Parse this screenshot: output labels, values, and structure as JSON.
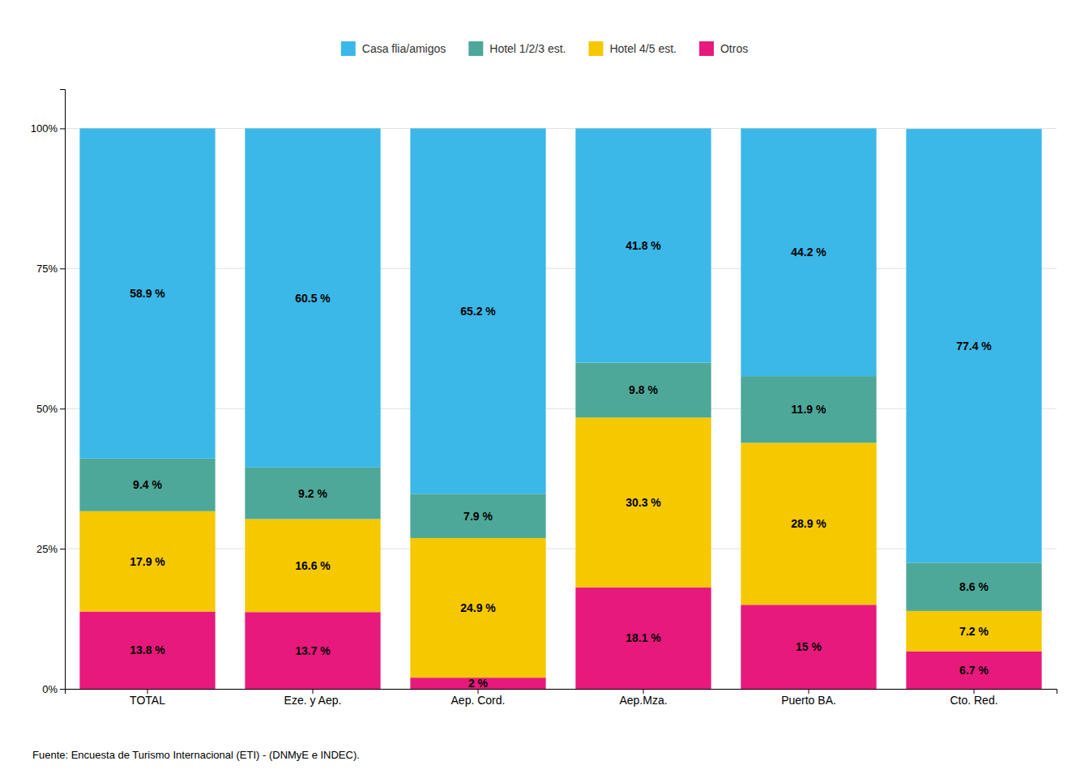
{
  "chart_data": {
    "type": "bar",
    "stacked": true,
    "categories": [
      "TOTAL",
      "Eze. y Aep.",
      "Aep. Cord.",
      "Aep.Mza.",
      "Puerto BA.",
      "Cto. Red."
    ],
    "series": [
      {
        "name": "Otros",
        "color": "#E8197C",
        "values": [
          13.8,
          13.7,
          2.0,
          18.1,
          15.0,
          6.7
        ],
        "value_labels": [
          "13.8 %",
          "13.7 %",
          "2 %",
          "18.1 %",
          "15 %",
          "6.7 %"
        ]
      },
      {
        "name": "Hotel 4/5 est.",
        "color": "#F5C800",
        "values": [
          17.9,
          16.6,
          24.9,
          30.3,
          28.9,
          7.2
        ],
        "value_labels": [
          "17.9 %",
          "16.6 %",
          "24.9 %",
          "30.3 %",
          "28.9 %",
          "7.2 %"
        ]
      },
      {
        "name": "Hotel 1/2/3 est.",
        "color": "#4DA899",
        "values": [
          9.4,
          9.2,
          7.9,
          9.8,
          11.9,
          8.6
        ],
        "value_labels": [
          "9.4 %",
          "9.2 %",
          "7.9 %",
          "9.8 %",
          "11.9 %",
          "8.6 %"
        ]
      },
      {
        "name": "Casa flia/amigos",
        "color": "#3BB8E8",
        "values": [
          58.9,
          60.5,
          65.2,
          41.8,
          44.2,
          77.4
        ],
        "value_labels": [
          "58.9 %",
          "60.5 %",
          "65.2 %",
          "41.8 %",
          "44.2 %",
          "77.4 %"
        ]
      }
    ],
    "data_labels": true,
    "ylim": [
      0,
      107
    ],
    "yticks": [
      {
        "value": 0,
        "label": "0%"
      },
      {
        "value": 25,
        "label": "25%"
      },
      {
        "value": 50,
        "label": "50%"
      },
      {
        "value": 75,
        "label": "75%"
      },
      {
        "value": 100,
        "label": "100%"
      }
    ],
    "grid": true,
    "legend": "top",
    "annotations": [
      "Fuente: Encuesta de Turismo Internacional (ETI) - (DNMyE e INDEC)."
    ]
  }
}
